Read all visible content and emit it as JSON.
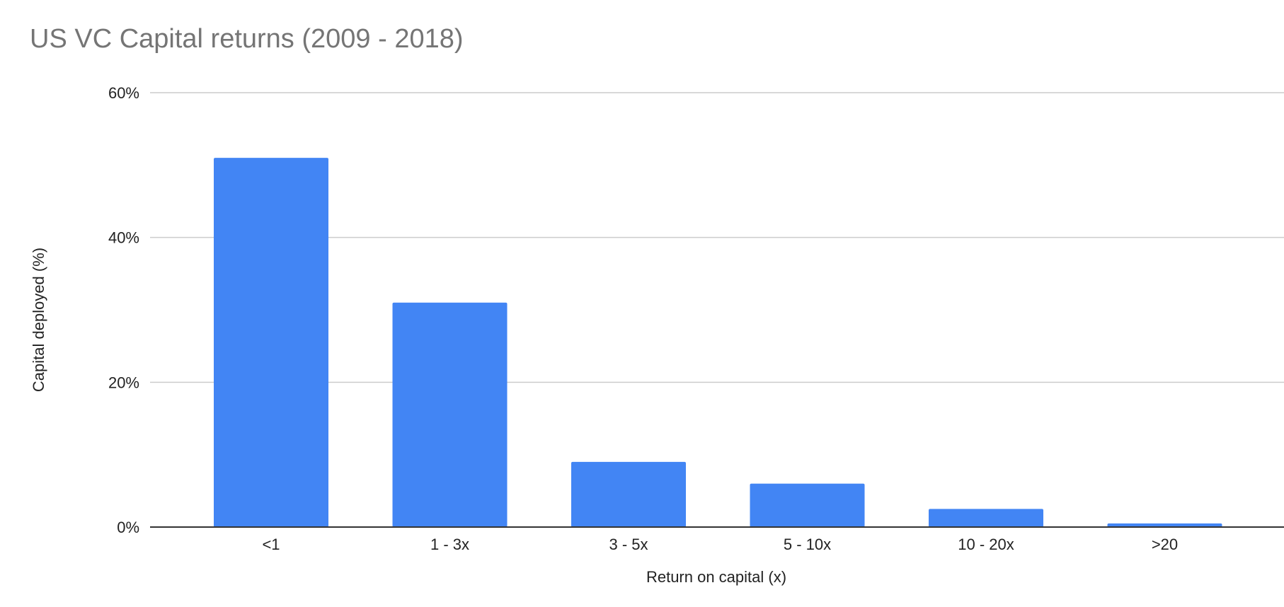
{
  "chart_data": {
    "type": "bar",
    "title": "US VC Capital returns (2009 - 2018)",
    "xlabel": "Return on capital (x)",
    "ylabel": "Capital deployed (%)",
    "categories": [
      "<1",
      "1 - 3x",
      "3 - 5x",
      "5 - 10x",
      "10 - 20x",
      ">20"
    ],
    "values": [
      51,
      31,
      9,
      6,
      2.5,
      0.5
    ],
    "ylim": [
      0,
      60
    ],
    "yticks": [
      0,
      20,
      40,
      60
    ],
    "ytick_labels": [
      "0%",
      "20%",
      "40%",
      "60%"
    ],
    "grid": true,
    "legend": "none",
    "bar_color": "#4285f4",
    "grid_color": "#cccccc",
    "axis_color": "#333333"
  }
}
